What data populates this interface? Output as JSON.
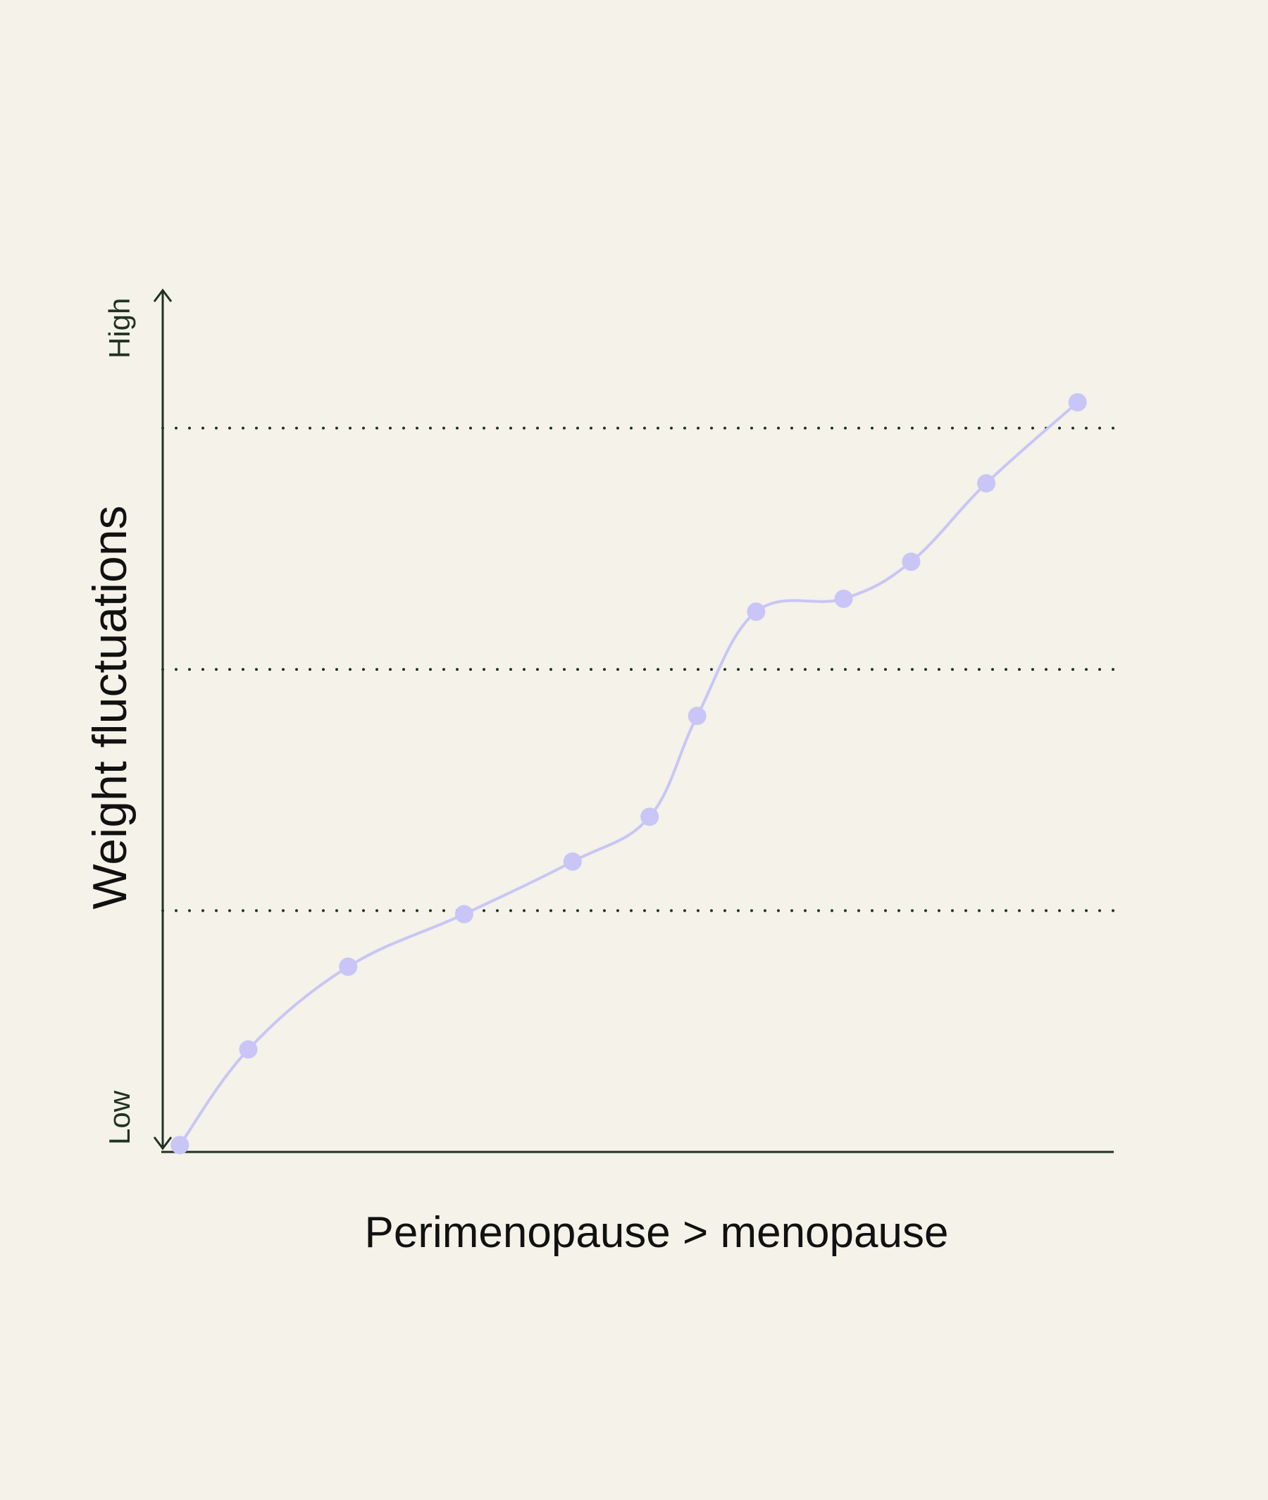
{
  "colors": {
    "background": "#f4f2e9",
    "card": "#f4f2e9",
    "axis": "#1f3320",
    "series": "#c9c5f6",
    "gridline": "#1f3320",
    "text": "#111111"
  },
  "chart_data": {
    "type": "line",
    "title": "",
    "xlabel": "Perimenopause > menopause",
    "ylabel": "Weight fluctuations",
    "y_axis_low_label": "Low",
    "y_axis_high_label": "High",
    "xlim": [
      0,
      10
    ],
    "ylim": [
      0,
      10
    ],
    "gridlines_y": [
      2.8,
      5.6,
      8.4
    ],
    "grid_style": "dotted",
    "legend": "none",
    "series": [
      {
        "points": [
          {
            "x": 0.18,
            "y": 0.08
          },
          {
            "x": 0.9,
            "y": 1.19
          },
          {
            "x": 1.95,
            "y": 2.15
          },
          {
            "x": 3.17,
            "y": 2.76
          },
          {
            "x": 4.31,
            "y": 3.37
          },
          {
            "x": 5.12,
            "y": 3.89
          },
          {
            "x": 5.62,
            "y": 5.06
          },
          {
            "x": 6.24,
            "y": 6.27
          },
          {
            "x": 7.16,
            "y": 6.42
          },
          {
            "x": 7.87,
            "y": 6.85
          },
          {
            "x": 8.66,
            "y": 7.76
          },
          {
            "x": 9.62,
            "y": 8.7
          }
        ]
      }
    ]
  }
}
